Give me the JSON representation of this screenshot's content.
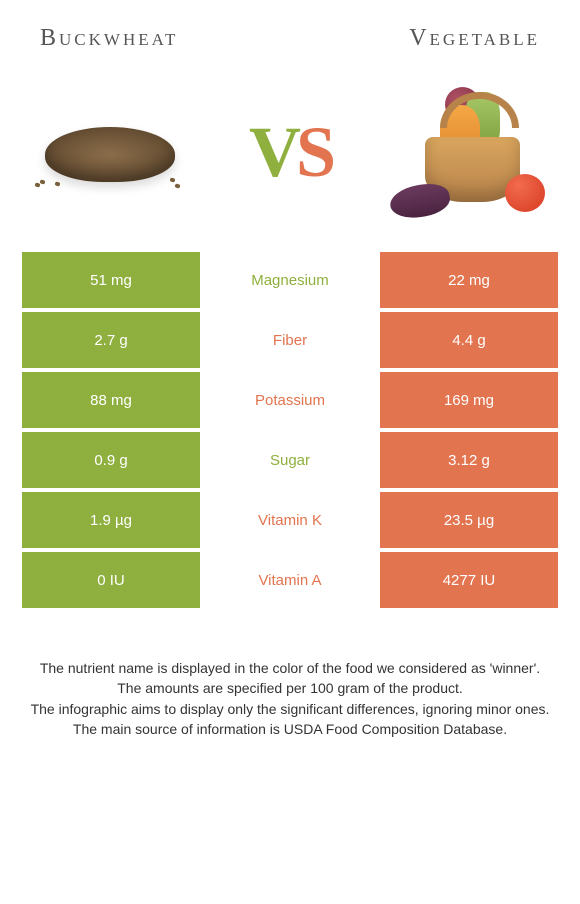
{
  "header": {
    "left_title": "Buckwheat",
    "right_title": "Vegetable"
  },
  "vs": {
    "v": "V",
    "s": "S"
  },
  "colors": {
    "left": "#8fb03e",
    "right": "#e2744f"
  },
  "rows": [
    {
      "left": "51 mg",
      "label": "Magnesium",
      "right": "22 mg",
      "winner": "left"
    },
    {
      "left": "2.7 g",
      "label": "Fiber",
      "right": "4.4 g",
      "winner": "right"
    },
    {
      "left": "88 mg",
      "label": "Potassium",
      "right": "169 mg",
      "winner": "right"
    },
    {
      "left": "0.9 g",
      "label": "Sugar",
      "right": "3.12 g",
      "winner": "left"
    },
    {
      "left": "1.9 µg",
      "label": "Vitamin K",
      "right": "23.5 µg",
      "winner": "right"
    },
    {
      "left": "0 IU",
      "label": "Vitamin A",
      "right": "4277 IU",
      "winner": "right"
    }
  ],
  "footer": {
    "line1": "The nutrient name is displayed in the color of the food we considered as 'winner'.",
    "line2": "The amounts are specified per 100 gram of the product.",
    "line3": "The infographic aims to display only the significant differences, ignoring minor ones.",
    "line4": "The main source of information is USDA Food Composition Database."
  }
}
